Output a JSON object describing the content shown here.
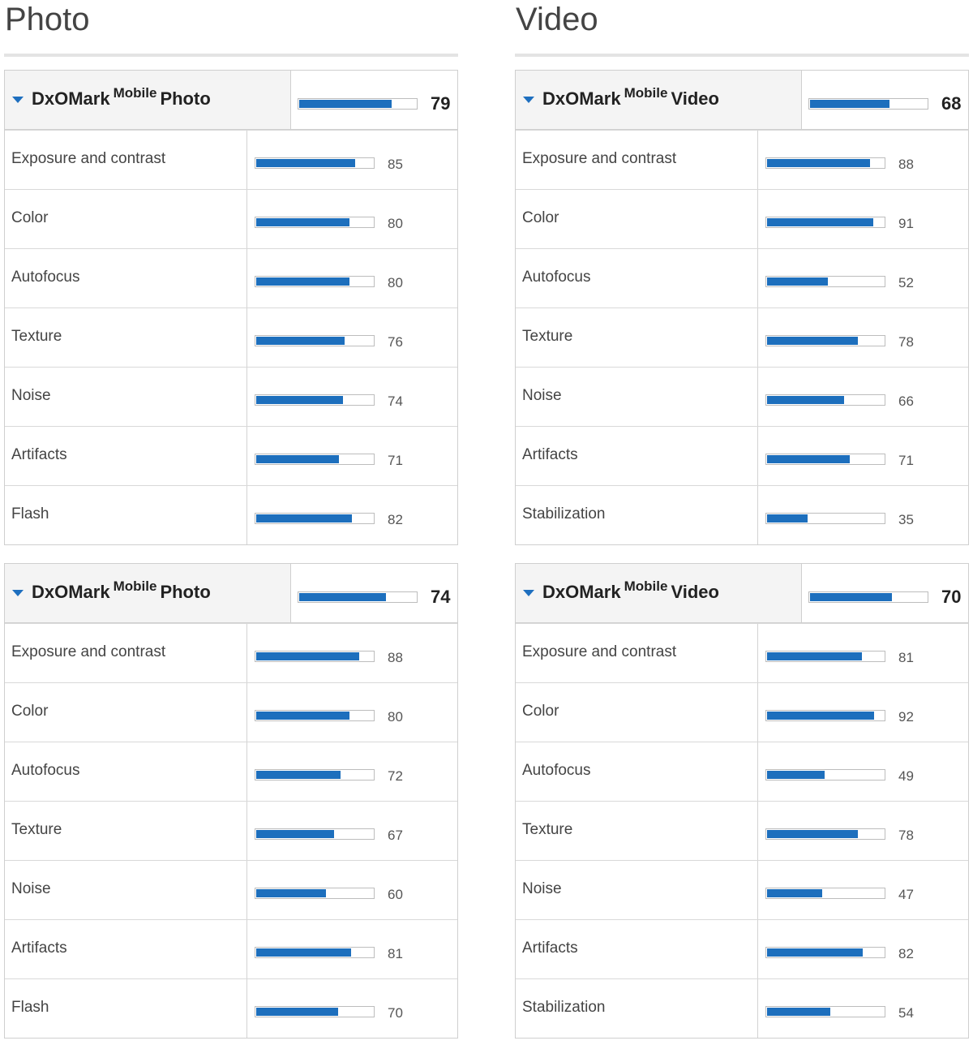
{
  "colors": {
    "bar_fill": "#1d6fbd",
    "caret": "#1e6fbf",
    "header_bg": "#f4f4f4"
  },
  "columns": [
    {
      "title": "Photo",
      "tables": [
        {
          "header": {
            "brand": "DxOMark",
            "sup": "Mobile",
            "kind": "Photo",
            "score": "79",
            "bar_value": 79
          },
          "rows": [
            {
              "label": "Exposure and contrast",
              "score": "85",
              "value": 85
            },
            {
              "label": "Color",
              "score": "80",
              "value": 80
            },
            {
              "label": "Autofocus",
              "score": "80",
              "value": 80
            },
            {
              "label": "Texture",
              "score": "76",
              "value": 76
            },
            {
              "label": "Noise",
              "score": "74",
              "value": 74
            },
            {
              "label": "Artifacts",
              "score": "71",
              "value": 71
            },
            {
              "label": "Flash",
              "score": "82",
              "value": 82
            }
          ]
        },
        {
          "header": {
            "brand": "DxOMark",
            "sup": "Mobile",
            "kind": "Photo",
            "score": "74",
            "bar_value": 74
          },
          "rows": [
            {
              "label": "Exposure and contrast",
              "score": "88",
              "value": 88
            },
            {
              "label": "Color",
              "score": "80",
              "value": 80
            },
            {
              "label": "Autofocus",
              "score": "72",
              "value": 72
            },
            {
              "label": "Texture",
              "score": "67",
              "value": 67
            },
            {
              "label": "Noise",
              "score": "60",
              "value": 60
            },
            {
              "label": "Artifacts",
              "score": "81",
              "value": 81
            },
            {
              "label": "Flash",
              "score": "70",
              "value": 70
            }
          ]
        }
      ]
    },
    {
      "title": "Video",
      "tables": [
        {
          "header": {
            "brand": "DxOMark",
            "sup": "Mobile",
            "kind": "Video",
            "score": "68",
            "bar_value": 68
          },
          "rows": [
            {
              "label": "Exposure and contrast",
              "score": "88",
              "value": 88
            },
            {
              "label": "Color",
              "score": "91",
              "value": 91
            },
            {
              "label": "Autofocus",
              "score": "52",
              "value": 52
            },
            {
              "label": "Texture",
              "score": "78",
              "value": 78
            },
            {
              "label": "Noise",
              "score": "66",
              "value": 66
            },
            {
              "label": "Artifacts",
              "score": "71",
              "value": 71
            },
            {
              "label": "Stabilization",
              "score": "35",
              "value": 35
            }
          ]
        },
        {
          "header": {
            "brand": "DxOMark",
            "sup": "Mobile",
            "kind": "Video",
            "score": "70",
            "bar_value": 70
          },
          "rows": [
            {
              "label": "Exposure and contrast",
              "score": "81",
              "value": 81
            },
            {
              "label": "Color",
              "score": "92",
              "value": 92
            },
            {
              "label": "Autofocus",
              "score": "49",
              "value": 49
            },
            {
              "label": "Texture",
              "score": "78",
              "value": 78
            },
            {
              "label": "Noise",
              "score": "47",
              "value": 47
            },
            {
              "label": "Artifacts",
              "score": "82",
              "value": 82
            },
            {
              "label": "Stabilization",
              "score": "54",
              "value": 54
            }
          ]
        }
      ]
    }
  ]
}
